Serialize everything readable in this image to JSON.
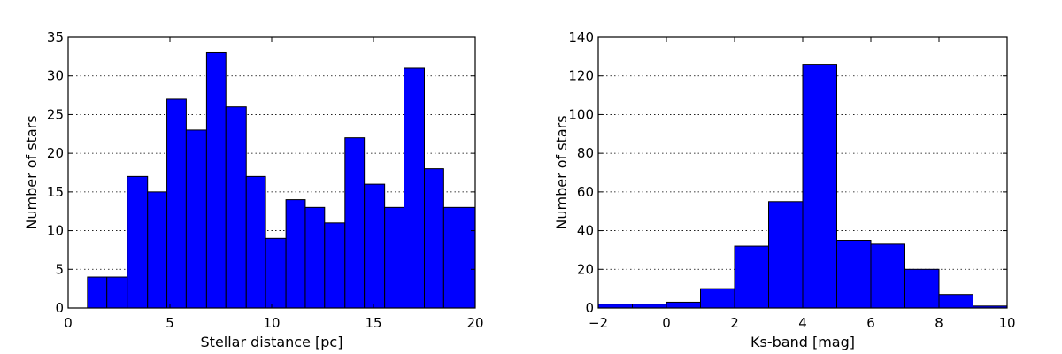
{
  "chart_data": [
    {
      "type": "bar",
      "xlabel": "Stellar distance [pc]",
      "ylabel": "Number of stars",
      "xlim": [
        0,
        20
      ],
      "ylim": [
        0,
        35
      ],
      "xticks": [
        "0",
        "5",
        "10",
        "15",
        "20"
      ],
      "yticks": [
        "0",
        "5",
        "10",
        "15",
        "20",
        "25",
        "30",
        "35"
      ],
      "grid": "y-dotted",
      "color": "#0000ff",
      "bins": [
        {
          "x0": 0.95,
          "x1": 1.9,
          "value": 4
        },
        {
          "x0": 1.9,
          "x1": 2.9,
          "value": 4
        },
        {
          "x0": 2.9,
          "x1": 3.9,
          "value": 17
        },
        {
          "x0": 3.9,
          "x1": 4.85,
          "value": 15
        },
        {
          "x0": 4.85,
          "x1": 5.8,
          "value": 27
        },
        {
          "x0": 5.8,
          "x1": 6.8,
          "value": 23
        },
        {
          "x0": 6.8,
          "x1": 7.75,
          "value": 33
        },
        {
          "x0": 7.75,
          "x1": 8.75,
          "value": 26
        },
        {
          "x0": 8.75,
          "x1": 9.7,
          "value": 17
        },
        {
          "x0": 9.7,
          "x1": 10.7,
          "value": 9
        },
        {
          "x0": 10.7,
          "x1": 11.65,
          "value": 14
        },
        {
          "x0": 11.65,
          "x1": 12.6,
          "value": 13
        },
        {
          "x0": 12.6,
          "x1": 13.6,
          "value": 11
        },
        {
          "x0": 13.6,
          "x1": 14.55,
          "value": 22
        },
        {
          "x0": 14.55,
          "x1": 15.55,
          "value": 16
        },
        {
          "x0": 15.55,
          "x1": 16.5,
          "value": 13
        },
        {
          "x0": 16.5,
          "x1": 17.5,
          "value": 31
        },
        {
          "x0": 17.5,
          "x1": 18.45,
          "value": 18
        },
        {
          "x0": 18.45,
          "x1": 20.0,
          "value": 13
        }
      ]
    },
    {
      "type": "bar",
      "xlabel": "Ks-band [mag]",
      "ylabel": "Number of stars",
      "xlim": [
        -2,
        10
      ],
      "ylim": [
        0,
        140
      ],
      "xticks": [
        "−2",
        "0",
        "2",
        "4",
        "6",
        "8",
        "10"
      ],
      "yticks": [
        "0",
        "20",
        "40",
        "60",
        "80",
        "100",
        "120",
        "140"
      ],
      "grid": "y-dotted",
      "color": "#0000ff",
      "bins": [
        {
          "x0": -2,
          "x1": -1,
          "value": 2
        },
        {
          "x0": -1,
          "x1": 0,
          "value": 2
        },
        {
          "x0": 0,
          "x1": 1,
          "value": 3
        },
        {
          "x0": 1,
          "x1": 2,
          "value": 10
        },
        {
          "x0": 2,
          "x1": 3,
          "value": 32
        },
        {
          "x0": 3,
          "x1": 4,
          "value": 55
        },
        {
          "x0": 4,
          "x1": 5,
          "value": 126
        },
        {
          "x0": 5,
          "x1": 6,
          "value": 35
        },
        {
          "x0": 6,
          "x1": 7,
          "value": 33
        },
        {
          "x0": 7,
          "x1": 8,
          "value": 20
        },
        {
          "x0": 8,
          "x1": 9,
          "value": 7
        },
        {
          "x0": 9,
          "x1": 10,
          "value": 1
        }
      ]
    }
  ]
}
